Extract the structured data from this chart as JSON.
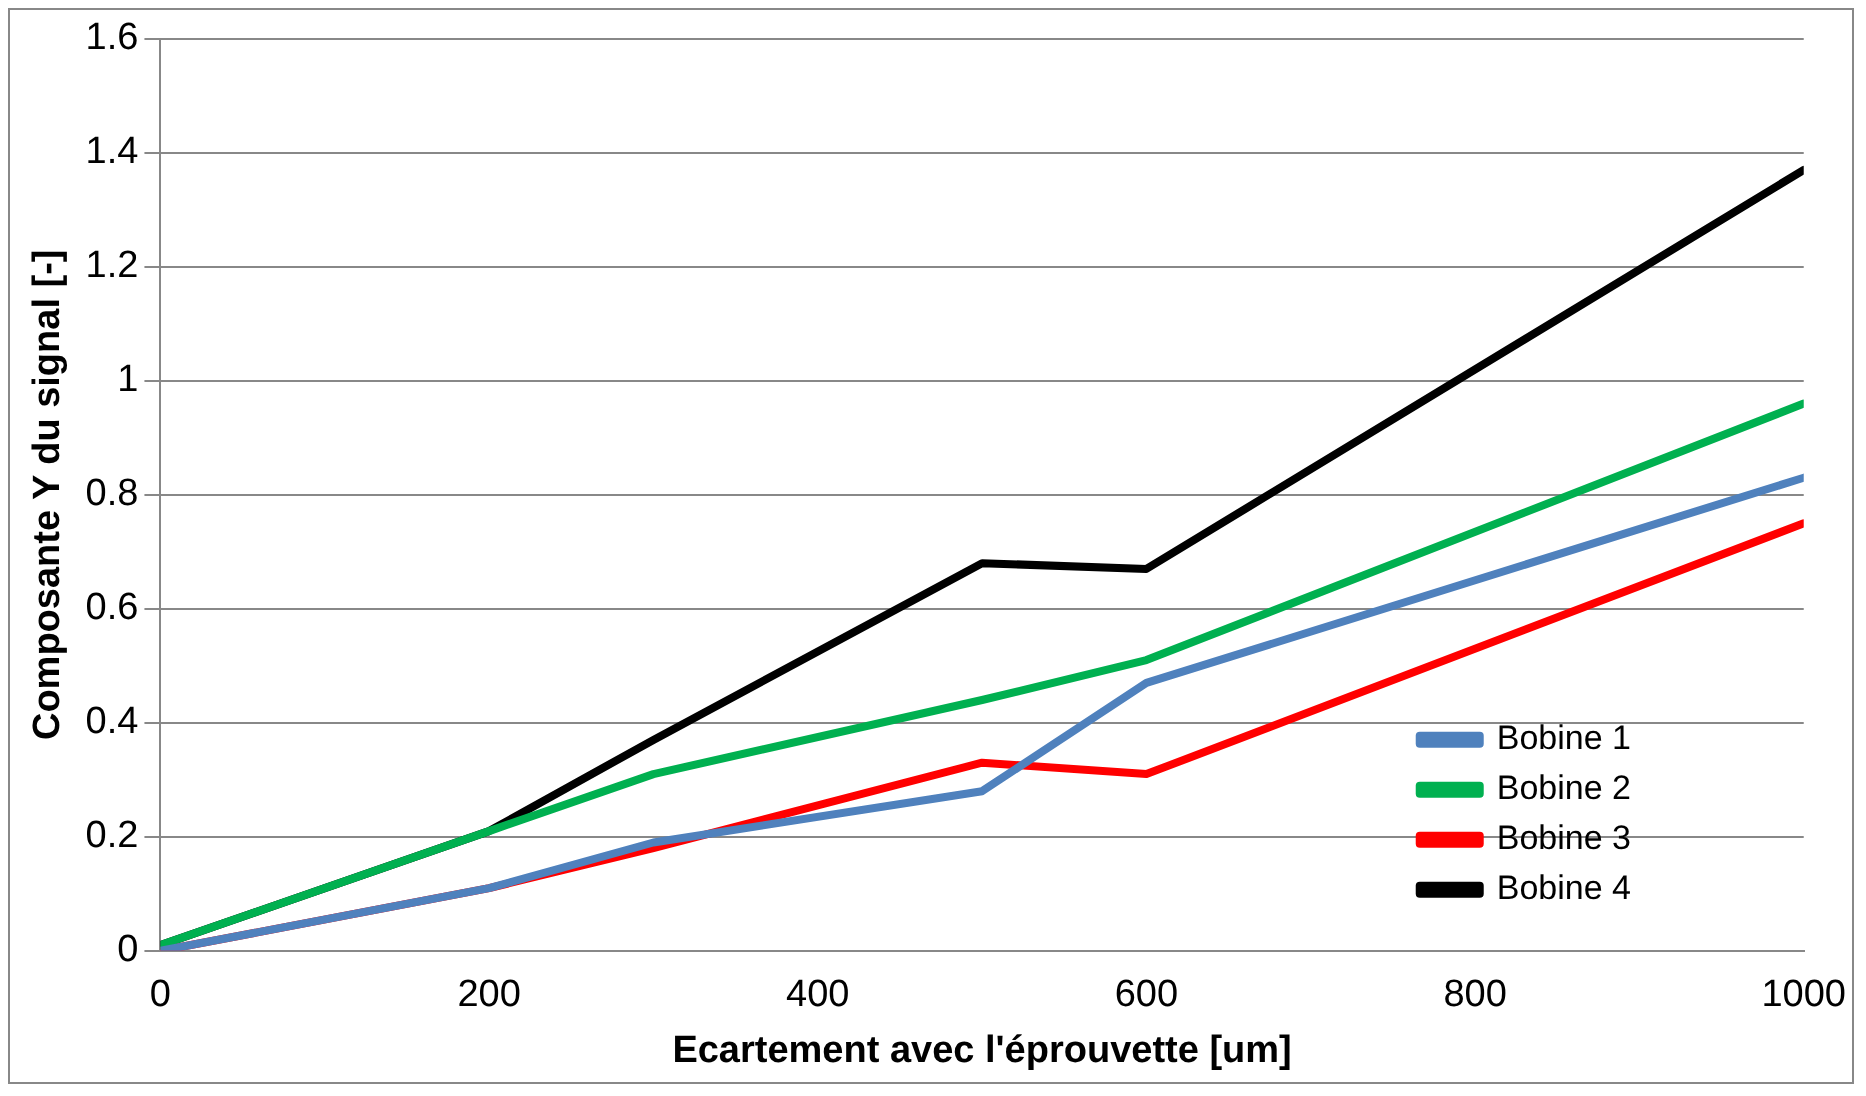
{
  "chart_data": {
    "type": "line",
    "xlabel": "Ecartement avec l'éprouvette [um]",
    "ylabel": "Composante Y du signal [-]",
    "x": [
      0,
      200,
      300,
      500,
      600,
      1000
    ],
    "series": [
      {
        "name": "Bobine 1",
        "color": "#4f81bd",
        "values": [
          0,
          0.11,
          0.19,
          0.28,
          0.47,
          0.83
        ]
      },
      {
        "name": "Bobine 2",
        "color": "#00b050",
        "values": [
          0.01,
          0.21,
          0.31,
          0.44,
          0.51,
          0.96
        ]
      },
      {
        "name": "Bobine 3",
        "color": "#ff0000",
        "values": [
          0,
          0.11,
          0.18,
          0.33,
          0.31,
          0.75
        ]
      },
      {
        "name": "Bobine 4",
        "color": "#000000",
        "values": [
          0.01,
          0.21,
          0.37,
          0.68,
          0.67,
          1.37
        ]
      }
    ],
    "xlim": [
      0,
      1000
    ],
    "xticks": [
      0,
      200,
      400,
      600,
      800,
      1000
    ],
    "ylim": [
      0,
      1.6
    ],
    "yticks": [
      0,
      0.2,
      0.4,
      0.6,
      0.8,
      1,
      1.2,
      1.4,
      1.6
    ],
    "grid": "y",
    "legend": "bottom right",
    "marker": "none",
    "line_style": "solid"
  }
}
